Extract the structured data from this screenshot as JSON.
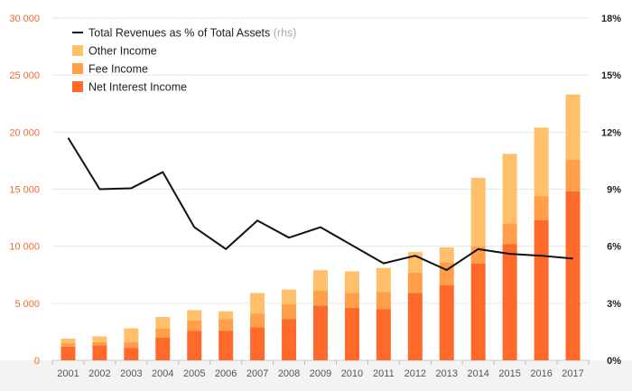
{
  "chart_data": {
    "type": "bar",
    "stacked": true,
    "categories": [
      "2001",
      "2002",
      "2003",
      "2004",
      "2005",
      "2006",
      "2007",
      "2008",
      "2009",
      "2010",
      "2011",
      "2012",
      "2013",
      "2014",
      "2015",
      "2016",
      "2017"
    ],
    "series": [
      {
        "name": "Net Interest Income",
        "color": "#ff6a2b",
        "values": [
          1200,
          1300,
          1100,
          2000,
          2600,
          2600,
          2900,
          3600,
          4800,
          4600,
          4500,
          5900,
          6600,
          8500,
          10200,
          12300,
          14800
        ]
      },
      {
        "name": "Fee Income",
        "color": "#ff9f4a",
        "values": [
          300,
          300,
          500,
          800,
          900,
          1000,
          1200,
          1300,
          1300,
          1300,
          1500,
          1800,
          2000,
          1500,
          1800,
          2100,
          2800
        ]
      },
      {
        "name": "Other Income",
        "color": "#ffbf6b",
        "values": [
          400,
          500,
          1200,
          1000,
          900,
          700,
          1800,
          1300,
          1800,
          1900,
          2100,
          1800,
          1300,
          6000,
          6100,
          6000,
          5700
        ]
      }
    ],
    "line_series": {
      "name": "Total Revenues as % of Total Assets",
      "name_suffix": "(rhs)",
      "color": "#111111",
      "axis": "right",
      "values": [
        11.7,
        9.0,
        9.05,
        9.9,
        7.0,
        5.85,
        7.35,
        6.45,
        7.0,
        6.05,
        5.1,
        5.5,
        4.75,
        5.85,
        5.6,
        5.5,
        5.35
      ]
    },
    "y_left": {
      "min": 0,
      "max": 30000,
      "ticks": [
        0,
        5000,
        10000,
        15000,
        20000,
        25000,
        30000
      ],
      "tick_labels": [
        "0",
        "5 000",
        "10 000",
        "15 000",
        "20 000",
        "25 000",
        "30 000"
      ],
      "color": "#f26a2e"
    },
    "y_right": {
      "min": 0,
      "max": 18,
      "ticks": [
        0,
        3,
        6,
        9,
        12,
        15,
        18
      ],
      "tick_labels": [
        "0%",
        "3%",
        "6%",
        "9%",
        "12%",
        "15%",
        "18%"
      ]
    },
    "grid": true,
    "legend": {
      "position": "top-left",
      "items": [
        {
          "label": "Total Revenues as % of Total Assets",
          "note": "(rhs)",
          "kind": "line",
          "color": "#111111"
        },
        {
          "label": "Other Income",
          "kind": "box",
          "color": "#ffbf6b"
        },
        {
          "label": "Fee Income",
          "kind": "box",
          "color": "#ff9f4a"
        },
        {
          "label": "Net Interest Income",
          "kind": "box",
          "color": "#ff6a2b"
        }
      ]
    },
    "title": "",
    "xlabel": "",
    "ylabel": ""
  }
}
